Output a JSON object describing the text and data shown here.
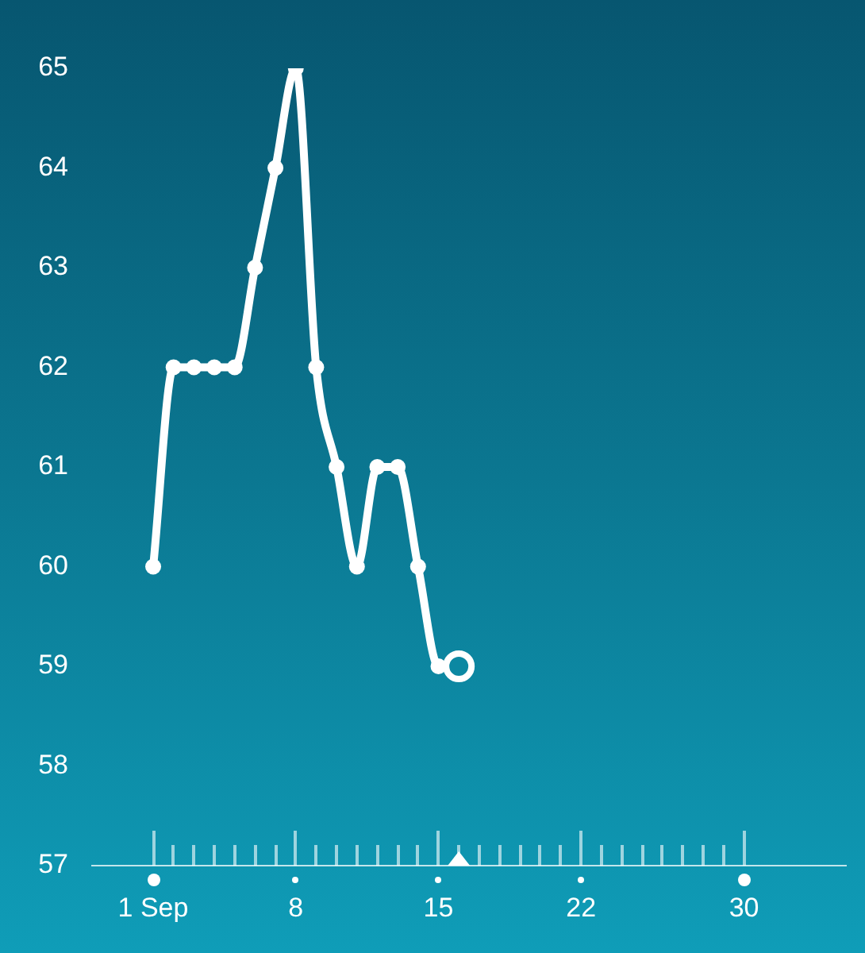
{
  "chart_data": {
    "type": "line",
    "x": [
      "--09-01",
      "--09-02",
      "--09-03",
      "--09-04",
      "--09-05",
      "--09-06",
      "--09-07",
      "--09-08",
      "--09-09",
      "--09-10",
      "--09-11",
      "--09-12",
      "--09-13",
      "--09-14",
      "--09-15",
      "--09-16"
    ],
    "series": [
      {
        "color": "#ffffff",
        "values": [
          60,
          62,
          62,
          62,
          62,
          63,
          64,
          65,
          62,
          61,
          60,
          61,
          61,
          60,
          59,
          59
        ]
      }
    ],
    "xlim": [
      "--08-29",
      "--10-05"
    ],
    "xticks": [
      {
        "value": "--09-01",
        "label": "1 Sep"
      },
      {
        "value": "--09-02",
        "label": null
      },
      {
        "value": "--09-03",
        "label": null
      },
      {
        "value": "--09-04",
        "label": null
      },
      {
        "value": "--09-05",
        "label": null
      },
      {
        "value": "--09-06",
        "label": null
      },
      {
        "value": "--09-07",
        "label": null
      },
      {
        "value": "--09-08",
        "label": "8"
      },
      {
        "value": "--09-09",
        "label": null
      },
      {
        "value": "--09-10",
        "label": null
      },
      {
        "value": "--09-11",
        "label": null
      },
      {
        "value": "--09-12",
        "label": null
      },
      {
        "value": "--09-13",
        "label": null
      },
      {
        "value": "--09-14",
        "label": null
      },
      {
        "value": "--09-15",
        "label": "15"
      },
      {
        "value": "--09-16",
        "label": null
      },
      {
        "value": "--09-17",
        "label": null
      },
      {
        "value": "--09-18",
        "label": null
      },
      {
        "value": "--09-19",
        "label": null
      },
      {
        "value": "--09-20",
        "label": null
      },
      {
        "value": "--09-21",
        "label": null
      },
      {
        "value": "--09-22",
        "label": "22"
      },
      {
        "value": "--09-23",
        "label": null
      },
      {
        "value": "--09-24",
        "label": null
      },
      {
        "value": "--09-25",
        "label": null
      },
      {
        "value": "--09-26",
        "label": null
      },
      {
        "value": "--09-27",
        "label": null
      },
      {
        "value": "--09-28",
        "label": null
      },
      {
        "value": "--09-29",
        "label": null
      },
      {
        "value": "--09-30",
        "label": "30"
      }
    ],
    "ylim": [
      57,
      65
    ],
    "yticks": [
      57,
      58,
      59,
      60,
      61,
      62,
      63,
      64,
      65
    ],
    "grid": false,
    "legend": false,
    "marker": "circle",
    "line_style": "solid"
  }
}
